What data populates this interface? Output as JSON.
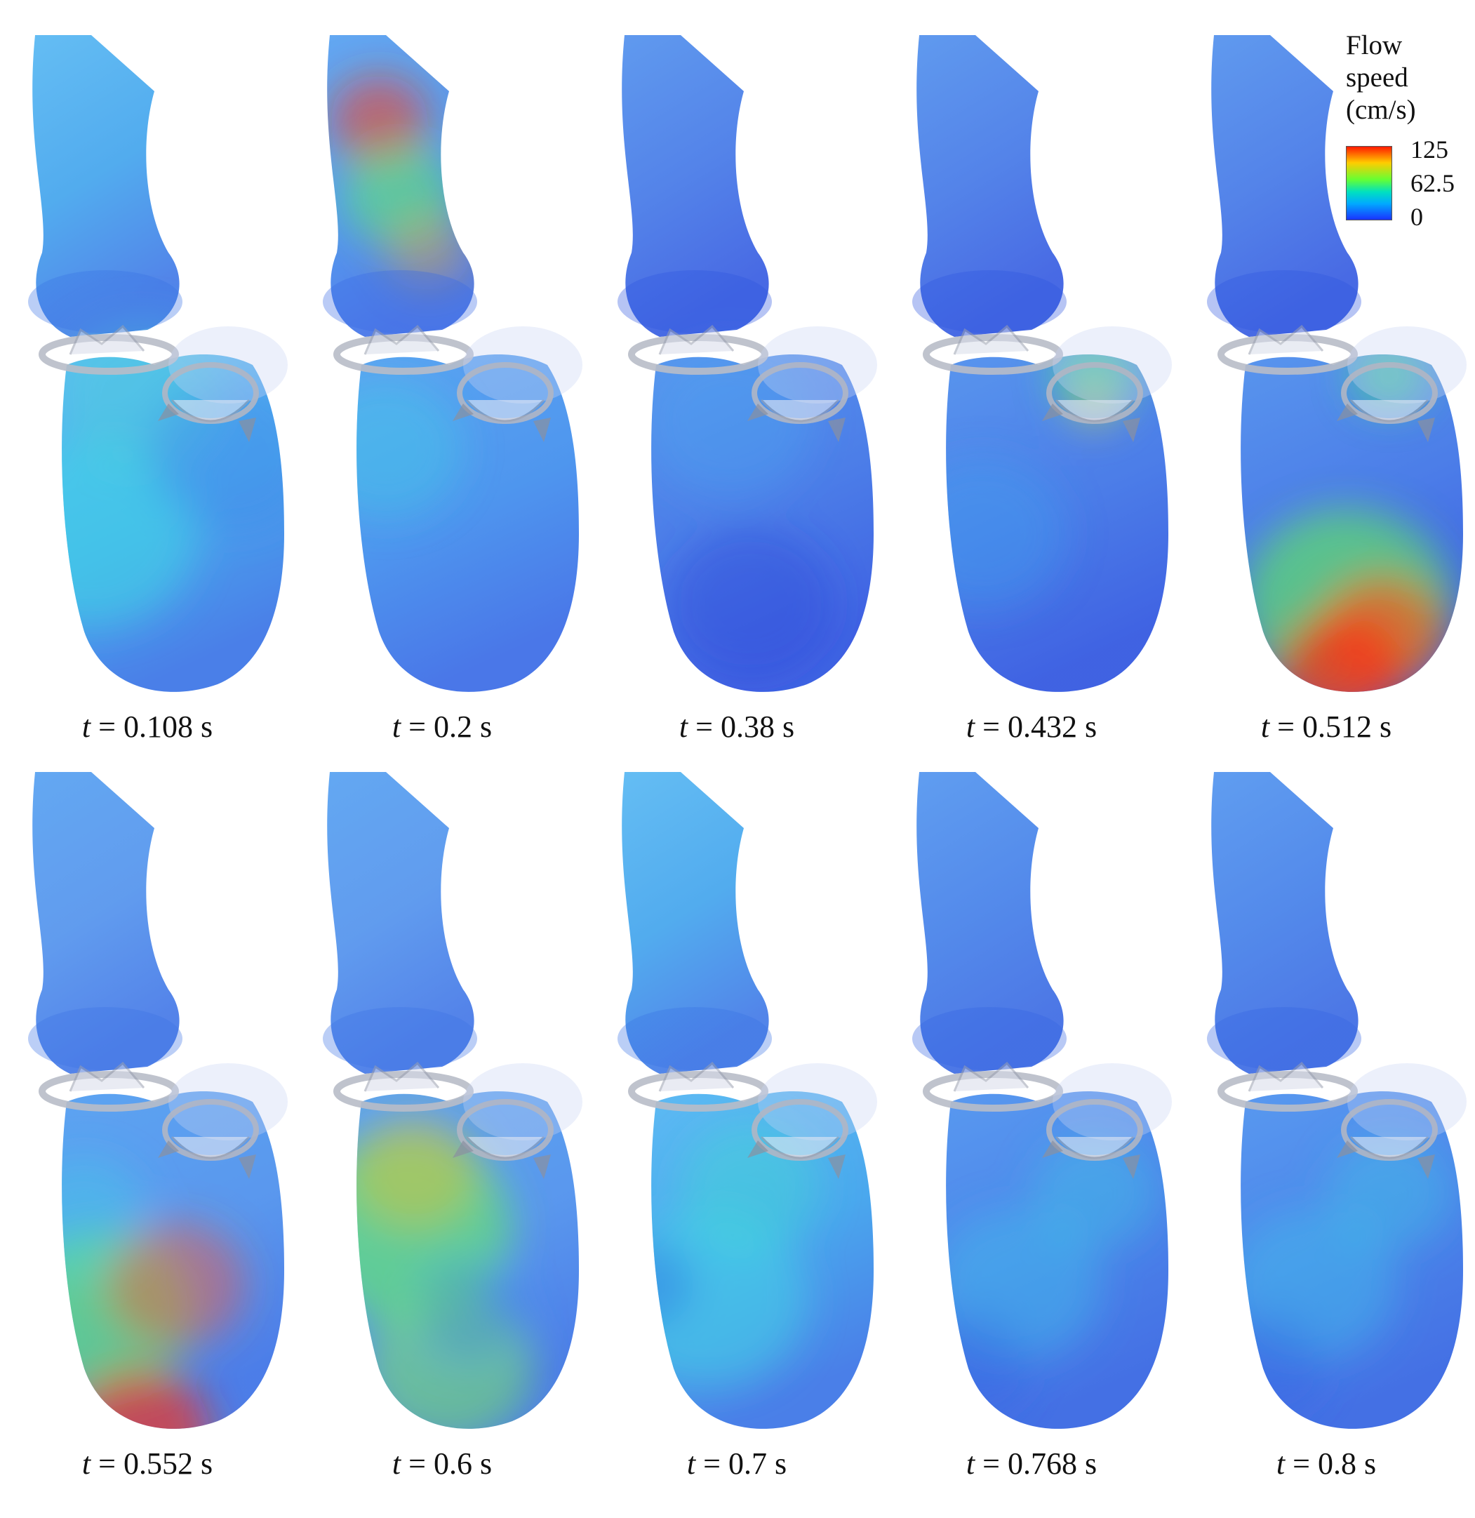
{
  "figure": {
    "panels": [
      {
        "time_value": "0.108",
        "scheme": "cyan"
      },
      {
        "time_value": "0.2",
        "scheme": "jet"
      },
      {
        "time_value": "0.38",
        "scheme": "blue"
      },
      {
        "time_value": "0.432",
        "scheme": "blue_green_valve"
      },
      {
        "time_value": "0.512",
        "scheme": "apex_red"
      },
      {
        "time_value": "0.552",
        "scheme": "red_mixed"
      },
      {
        "time_value": "0.6",
        "scheme": "green_mixed"
      },
      {
        "time_value": "0.7",
        "scheme": "cyan_mixed"
      },
      {
        "time_value": "0.768",
        "scheme": "blue_mixed"
      },
      {
        "time_value": "0.8",
        "scheme": "blue_mixed"
      }
    ],
    "caption_symbol": "t",
    "caption_equals": " = ",
    "caption_unit": " s"
  },
  "legend": {
    "title_line1": "Flow",
    "title_line2": "speed",
    "title_line3": "(cm/s)",
    "max_label": "125",
    "mid_label": "62.5",
    "min_label": "0",
    "colors": [
      "#ff1a00",
      "#ffcc00",
      "#66ff33",
      "#00e0c0",
      "#00aaff",
      "#1a33ff"
    ]
  }
}
